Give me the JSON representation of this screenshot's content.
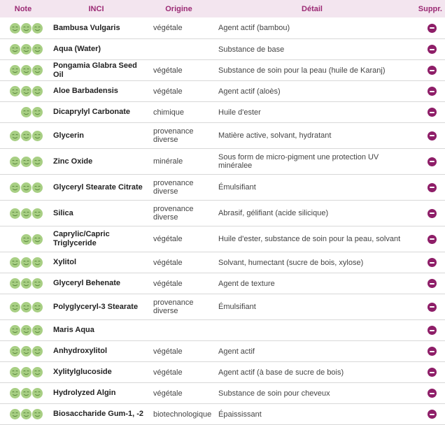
{
  "header": {
    "note": "Note",
    "inci": "INCI",
    "origine": "Origine",
    "detail": "Détail",
    "suppr": "Suppr."
  },
  "colors": {
    "accent": "#8e1e68",
    "header_bg": "#f3e5ef",
    "face": "#a8cf84"
  },
  "rows": [
    {
      "rating": 3,
      "inci": "Bambusa Vulgaris",
      "origine": "végétale",
      "detail": "Agent actif (bambou)"
    },
    {
      "rating": 3,
      "inci": "Aqua (Water)",
      "origine": "",
      "detail": "Substance de base"
    },
    {
      "rating": 3,
      "inci": "Pongamia Glabra Seed Oil",
      "origine": "végétale",
      "detail": "Substance de soin pour la peau (huile de Karanj)"
    },
    {
      "rating": 3,
      "inci": "Aloe Barbadensis",
      "origine": "végétale",
      "detail": "Agent actif (aloès)"
    },
    {
      "rating": 2,
      "inci": "Dicaprylyl Carbonate",
      "origine": "chimique",
      "detail": "Huile d'ester"
    },
    {
      "rating": 3,
      "inci": "Glycerin",
      "origine": "provenance diverse",
      "detail": "Matière active, solvant, hydratant"
    },
    {
      "rating": 3,
      "inci": "Zinc Oxide",
      "origine": "minérale",
      "detail": "Sous form de micro-pigment une protection UV minéralee"
    },
    {
      "rating": 3,
      "inci": "Glyceryl Stearate Citrate",
      "origine": "provenance diverse",
      "detail": "Émulsifiant"
    },
    {
      "rating": 3,
      "inci": "Silica",
      "origine": "provenance diverse",
      "detail": "Abrasif, gélifiant (acide silicique)"
    },
    {
      "rating": 2,
      "inci": "Caprylic/Capric Triglyceride",
      "origine": "végétale",
      "detail": "Huile d'ester, substance de soin pour la peau, solvant"
    },
    {
      "rating": 3,
      "inci": "Xylitol",
      "origine": "végétale",
      "detail": "Solvant, humectant (sucre de bois, xylose)"
    },
    {
      "rating": 3,
      "inci": "Glyceryl Behenate",
      "origine": "végétale",
      "detail": "Agent de texture"
    },
    {
      "rating": 3,
      "inci": "Polyglyceryl-3 Stearate",
      "origine": "provenance diverse",
      "detail": "Émulsifiant"
    },
    {
      "rating": 3,
      "inci": "Maris Aqua",
      "origine": "",
      "detail": ""
    },
    {
      "rating": 3,
      "inci": "Anhydroxylitol",
      "origine": "végétale",
      "detail": "Agent actif"
    },
    {
      "rating": 3,
      "inci": "Xylitylglucoside",
      "origine": "végétale",
      "detail": "Agent actif (à base de sucre de bois)"
    },
    {
      "rating": 3,
      "inci": "Hydrolyzed Algin",
      "origine": "végétale",
      "detail": "Substance de soin pour cheveux"
    },
    {
      "rating": 3,
      "inci": "Biosaccharide Gum-1, -2",
      "origine": "biotechnologique",
      "detail": "Épaississant"
    }
  ]
}
